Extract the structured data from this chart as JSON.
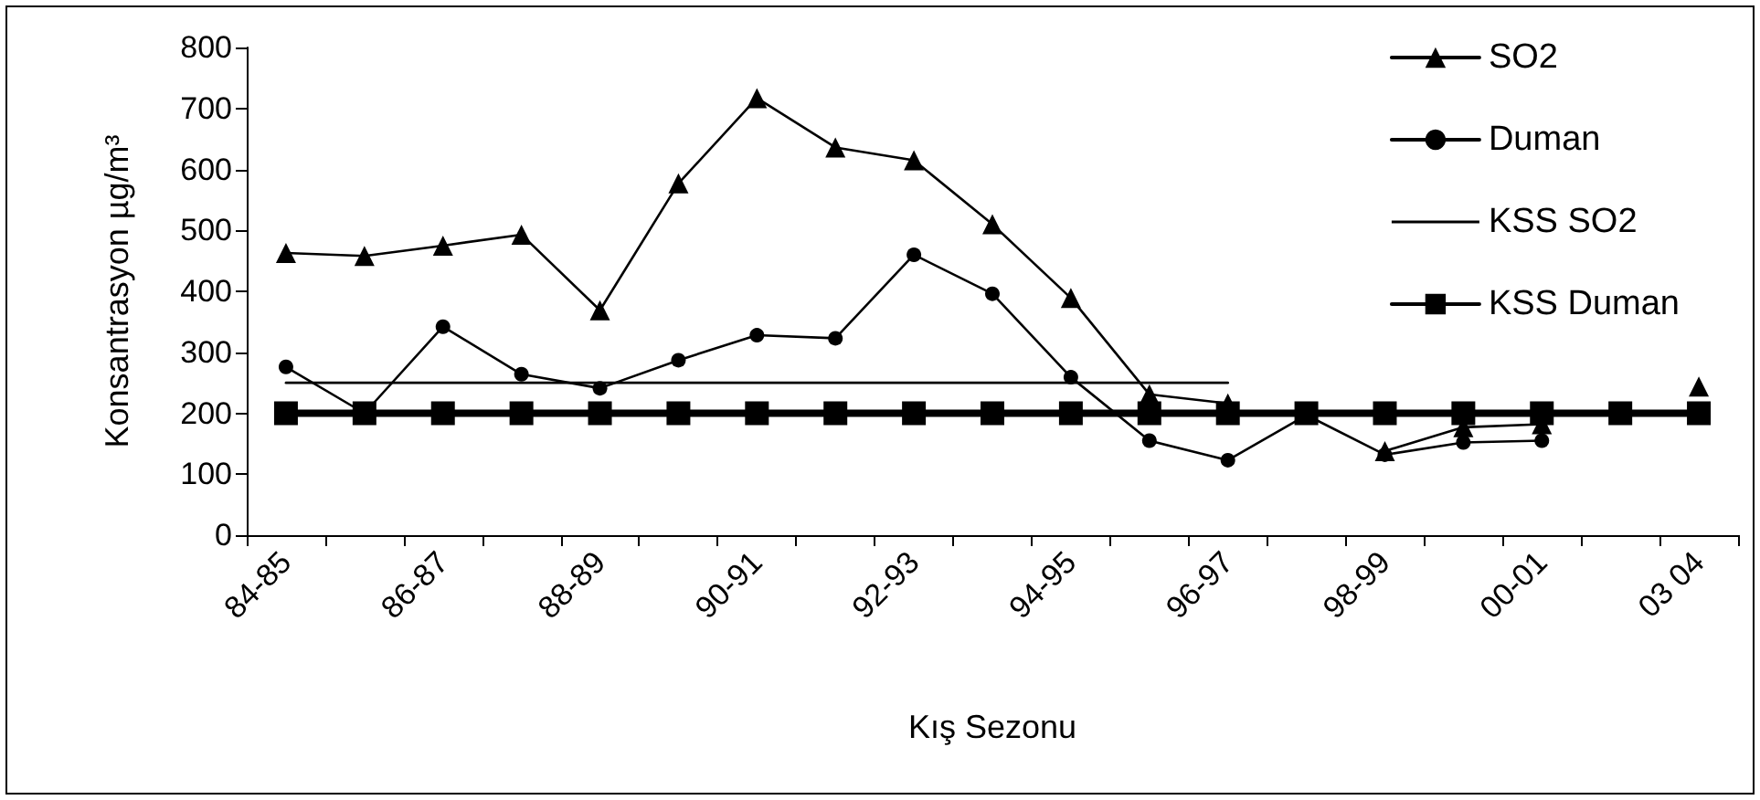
{
  "chart_data": {
    "type": "line",
    "xlabel": "Kış Sezonu",
    "ylabel": "Konsantrasyon µg/m³",
    "categories": [
      "84-85",
      null,
      "86-87",
      null,
      "88-89",
      null,
      "90-91",
      null,
      "92-93",
      null,
      "94-95",
      null,
      "96-97",
      null,
      "98-99",
      null,
      "00-01",
      null,
      "03 04"
    ],
    "series": [
      {
        "name": "SO2",
        "color": "#000000",
        "marker": "triangle",
        "values": [
          463,
          458,
          475,
          493,
          369,
          577,
          717,
          636,
          615,
          510,
          389,
          231,
          216,
          null,
          138,
          177,
          182,
          null,
          244
        ]
      },
      {
        "name": "Duman",
        "color": "#000000",
        "marker": "circle",
        "values": [
          276,
          200,
          342,
          264,
          241,
          287,
          328,
          323,
          460,
          396,
          259,
          155,
          123,
          197,
          132,
          152,
          155,
          null,
          null
        ]
      },
      {
        "name": "KSS SO2",
        "color": "#000000",
        "marker": "none",
        "values": [
          250,
          250,
          250,
          250,
          250,
          250,
          250,
          250,
          250,
          250,
          250,
          250,
          250,
          null,
          null,
          null,
          null,
          null,
          null
        ]
      },
      {
        "name": "KSS Duman",
        "color": "#000000",
        "marker": "square",
        "values": [
          200,
          200,
          200,
          200,
          200,
          200,
          200,
          200,
          200,
          200,
          200,
          200,
          200,
          200,
          200,
          200,
          200,
          200,
          200
        ]
      }
    ],
    "ylim": [
      0,
      800
    ],
    "yticks": [
      0,
      100,
      200,
      300,
      400,
      500,
      600,
      700,
      800
    ],
    "grid": false,
    "legend": "top right",
    "line_style": "solid"
  }
}
